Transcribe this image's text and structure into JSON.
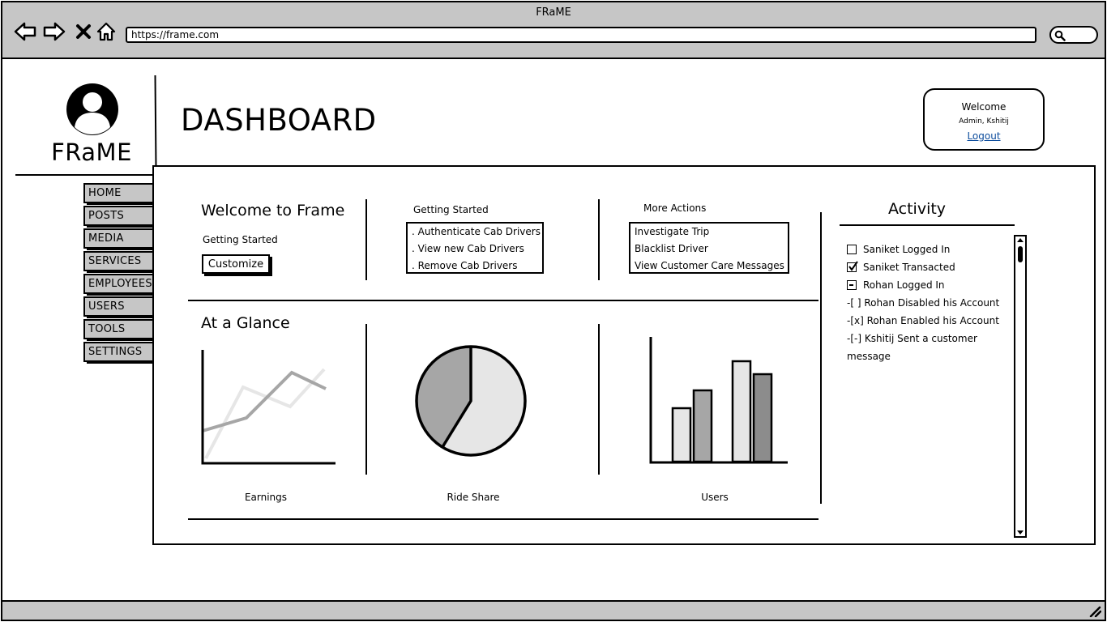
{
  "window": {
    "title": "FRaME"
  },
  "browser": {
    "url": "https://frame.com"
  },
  "brand": {
    "name": "FRaME"
  },
  "page": {
    "title": "DASHBOARD"
  },
  "welcome": {
    "title": "Welcome",
    "user": "Admin, Kshitij",
    "logout_label": "Logout"
  },
  "sidebar": {
    "items": [
      {
        "label": "HOME"
      },
      {
        "label": "POSTS"
      },
      {
        "label": "MEDIA"
      },
      {
        "label": "SERVICES"
      },
      {
        "label": "EMPLOYEES"
      },
      {
        "label": "USERS"
      },
      {
        "label": "TOOLS"
      },
      {
        "label": "SETTINGS"
      }
    ]
  },
  "intro": {
    "heading": "Welcome to Frame",
    "subheading": "Getting Started",
    "customize_label": "Customize"
  },
  "getting_started": {
    "label": "Getting Started",
    "links": [
      ". Authenticate Cab Drivers",
      ". View new Cab Drivers",
      ". Remove Cab Drivers"
    ]
  },
  "more_actions": {
    "label": "More Actions",
    "links": [
      "Investigate Trip",
      "Blacklist Driver",
      "View Customer Care Messages"
    ]
  },
  "glance": {
    "heading": "At a Glance",
    "charts": [
      {
        "caption": "Earnings"
      },
      {
        "caption": "Ride Share"
      },
      {
        "caption": "Users"
      }
    ]
  },
  "activity": {
    "title": "Activity",
    "items": [
      {
        "state": "unchecked",
        "text": "Saniket Logged In"
      },
      {
        "state": "checked",
        "text": "Saniket Transacted"
      },
      {
        "state": "indeterminate",
        "text": "Rohan Logged In"
      },
      {
        "state": "text",
        "text": "-[ ] Rohan Disabled his Account"
      },
      {
        "state": "text",
        "text": "-[x] Rohan Enabled his Account"
      },
      {
        "state": "text",
        "text": "-[-] Kshitij Sent a customer message"
      }
    ]
  },
  "colors": {
    "chrome": "#c6c6c6",
    "link": "#0b4b9c",
    "dark_gray": "#a6a6a6",
    "light_gray": "#e6e6e6",
    "mid_gray": "#8c8c8c"
  }
}
